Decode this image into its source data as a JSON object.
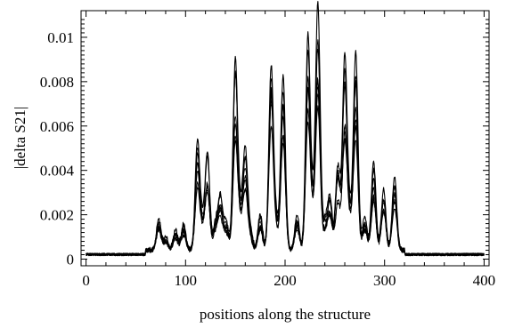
{
  "chart_data": {
    "type": "line",
    "title": "",
    "xlabel": "positions along the structure",
    "ylabel": "|delta S21|",
    "xlim": [
      -5,
      405
    ],
    "ylim": [
      -0.0003,
      0.0112
    ],
    "x_ticks": [
      0,
      100,
      200,
      300,
      400
    ],
    "y_ticks": [
      0,
      0.002,
      0.004,
      0.006,
      0.008,
      0.01
    ],
    "x_tick_labels": [
      "0",
      "100",
      "200",
      "300",
      "400"
    ],
    "y_tick_labels": [
      "0",
      "0.002",
      "0.004",
      "0.006",
      "0.008",
      "0.01"
    ],
    "grid": false,
    "legend": "none",
    "series_color": "#000000",
    "series_count": 8,
    "baseline_value": 0.00015,
    "peaks": [
      {
        "x": 73,
        "value": 0.0014
      },
      {
        "x": 80,
        "value": 0.0006
      },
      {
        "x": 90,
        "value": 0.0009
      },
      {
        "x": 98,
        "value": 0.0012
      },
      {
        "x": 112,
        "value": 0.0049
      },
      {
        "x": 117,
        "value": 0.0011
      },
      {
        "x": 122,
        "value": 0.0044
      },
      {
        "x": 130,
        "value": 0.0012
      },
      {
        "x": 135,
        "value": 0.0024
      },
      {
        "x": 141,
        "value": 0.0013
      },
      {
        "x": 150,
        "value": 0.0085
      },
      {
        "x": 155,
        "value": 0.0016
      },
      {
        "x": 160,
        "value": 0.0045
      },
      {
        "x": 165,
        "value": 0.0009
      },
      {
        "x": 175,
        "value": 0.0016
      },
      {
        "x": 186,
        "value": 0.0082
      },
      {
        "x": 191,
        "value": 0.0013
      },
      {
        "x": 198,
        "value": 0.0079
      },
      {
        "x": 212,
        "value": 0.0016
      },
      {
        "x": 223,
        "value": 0.0096
      },
      {
        "x": 228,
        "value": 0.0017
      },
      {
        "x": 233,
        "value": 0.011
      },
      {
        "x": 240,
        "value": 0.0012
      },
      {
        "x": 245,
        "value": 0.0024
      },
      {
        "x": 253,
        "value": 0.0038
      },
      {
        "x": 260,
        "value": 0.0087
      },
      {
        "x": 265,
        "value": 0.0016
      },
      {
        "x": 271,
        "value": 0.0089
      },
      {
        "x": 280,
        "value": 0.0015
      },
      {
        "x": 289,
        "value": 0.004
      },
      {
        "x": 299,
        "value": 0.0027
      },
      {
        "x": 310,
        "value": 0.0033
      }
    ]
  }
}
